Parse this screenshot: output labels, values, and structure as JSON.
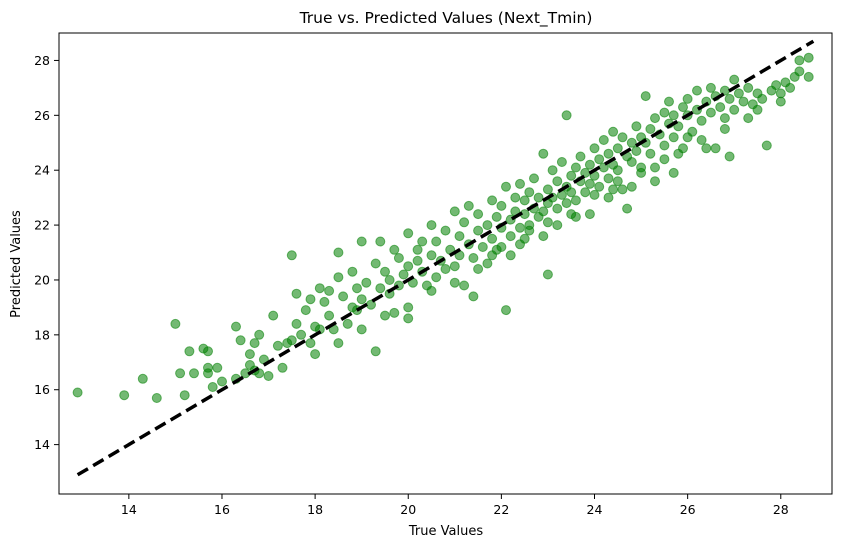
{
  "chart_data": {
    "type": "scatter",
    "title": "True vs. Predicted Values (Next_Tmin)",
    "xlabel": "True Values",
    "ylabel": "Predicted Values",
    "xlim": [
      12.5,
      29.1
    ],
    "ylim": [
      12.2,
      29.0
    ],
    "xticks": [
      14,
      16,
      18,
      20,
      22,
      24,
      26,
      28
    ],
    "yticks": [
      14,
      16,
      18,
      20,
      22,
      24,
      26,
      28
    ],
    "grid": false,
    "legend": "none",
    "point_color": "#008000",
    "point_alpha": 0.55,
    "reference_line": {
      "x": [
        12.9,
        28.7
      ],
      "y": [
        12.9,
        28.7
      ],
      "style": "dashed",
      "color": "#000000"
    },
    "points": [
      [
        12.9,
        15.9
      ],
      [
        13.9,
        15.8
      ],
      [
        14.3,
        16.4
      ],
      [
        14.6,
        15.7
      ],
      [
        15.0,
        18.4
      ],
      [
        15.1,
        16.6
      ],
      [
        15.2,
        15.8
      ],
      [
        15.3,
        17.4
      ],
      [
        15.4,
        16.6
      ],
      [
        15.6,
        17.5
      ],
      [
        15.7,
        17.4
      ],
      [
        15.7,
        16.8
      ],
      [
        15.7,
        16.6
      ],
      [
        15.8,
        16.1
      ],
      [
        15.9,
        16.8
      ],
      [
        16.0,
        16.3
      ],
      [
        16.3,
        18.3
      ],
      [
        16.3,
        16.4
      ],
      [
        16.4,
        17.8
      ],
      [
        16.5,
        16.6
      ],
      [
        16.6,
        17.3
      ],
      [
        16.6,
        16.9
      ],
      [
        16.7,
        17.7
      ],
      [
        16.7,
        16.7
      ],
      [
        16.8,
        16.6
      ],
      [
        16.8,
        18.0
      ],
      [
        16.9,
        17.1
      ],
      [
        17.0,
        16.5
      ],
      [
        17.1,
        18.7
      ],
      [
        17.2,
        17.6
      ],
      [
        17.3,
        16.8
      ],
      [
        17.4,
        17.7
      ],
      [
        17.5,
        20.9
      ],
      [
        17.5,
        17.8
      ],
      [
        17.6,
        18.4
      ],
      [
        17.6,
        19.5
      ],
      [
        17.7,
        18.0
      ],
      [
        17.8,
        18.9
      ],
      [
        17.9,
        17.7
      ],
      [
        17.9,
        19.3
      ],
      [
        18.0,
        18.3
      ],
      [
        18.1,
        18.2
      ],
      [
        18.1,
        19.7
      ],
      [
        18.2,
        19.2
      ],
      [
        18.3,
        19.6
      ],
      [
        18.3,
        18.7
      ],
      [
        18.4,
        18.2
      ],
      [
        18.5,
        20.1
      ],
      [
        18.5,
        21.0
      ],
      [
        18.6,
        19.4
      ],
      [
        18.7,
        18.4
      ],
      [
        18.8,
        19.0
      ],
      [
        18.8,
        20.3
      ],
      [
        18.9,
        18.9
      ],
      [
        18.9,
        19.7
      ],
      [
        19.0,
        21.4
      ],
      [
        19.0,
        19.3
      ],
      [
        19.1,
        19.9
      ],
      [
        19.2,
        19.1
      ],
      [
        19.3,
        17.4
      ],
      [
        19.3,
        20.6
      ],
      [
        19.4,
        21.4
      ],
      [
        19.4,
        19.7
      ],
      [
        19.5,
        20.3
      ],
      [
        19.6,
        20.0
      ],
      [
        19.6,
        19.5
      ],
      [
        19.7,
        21.1
      ],
      [
        19.7,
        18.8
      ],
      [
        19.8,
        20.8
      ],
      [
        19.8,
        19.8
      ],
      [
        19.9,
        20.2
      ],
      [
        20.0,
        21.7
      ],
      [
        20.0,
        18.6
      ],
      [
        20.0,
        20.5
      ],
      [
        20.1,
        19.9
      ],
      [
        20.2,
        21.1
      ],
      [
        20.2,
        20.7
      ],
      [
        20.3,
        20.3
      ],
      [
        20.3,
        21.4
      ],
      [
        20.4,
        19.8
      ],
      [
        20.5,
        22.0
      ],
      [
        20.5,
        20.9
      ],
      [
        20.6,
        21.4
      ],
      [
        20.6,
        20.1
      ],
      [
        20.7,
        20.7
      ],
      [
        20.8,
        21.8
      ],
      [
        20.8,
        20.4
      ],
      [
        20.9,
        21.1
      ],
      [
        21.0,
        22.5
      ],
      [
        21.0,
        20.5
      ],
      [
        21.1,
        21.6
      ],
      [
        21.1,
        20.9
      ],
      [
        21.2,
        22.1
      ],
      [
        21.2,
        19.8
      ],
      [
        21.3,
        21.3
      ],
      [
        21.3,
        22.7
      ],
      [
        21.4,
        20.8
      ],
      [
        21.5,
        21.8
      ],
      [
        21.5,
        22.4
      ],
      [
        21.6,
        21.2
      ],
      [
        21.7,
        22.0
      ],
      [
        21.7,
        20.6
      ],
      [
        21.8,
        22.9
      ],
      [
        21.8,
        21.5
      ],
      [
        21.9,
        22.3
      ],
      [
        21.9,
        21.1
      ],
      [
        22.0,
        22.7
      ],
      [
        22.0,
        21.9
      ],
      [
        22.1,
        23.4
      ],
      [
        22.1,
        18.9
      ],
      [
        22.2,
        22.2
      ],
      [
        22.2,
        21.6
      ],
      [
        22.3,
        23.0
      ],
      [
        22.3,
        22.5
      ],
      [
        22.4,
        21.9
      ],
      [
        22.4,
        23.5
      ],
      [
        22.5,
        22.4
      ],
      [
        22.5,
        22.9
      ],
      [
        22.6,
        23.2
      ],
      [
        22.6,
        21.8
      ],
      [
        22.7,
        22.6
      ],
      [
        22.7,
        23.7
      ],
      [
        22.8,
        22.3
      ],
      [
        22.8,
        23.0
      ],
      [
        22.9,
        24.6
      ],
      [
        22.9,
        22.5
      ],
      [
        23.0,
        23.3
      ],
      [
        23.0,
        20.2
      ],
      [
        23.0,
        22.8
      ],
      [
        23.1,
        24.0
      ],
      [
        23.1,
        23.0
      ],
      [
        23.2,
        22.6
      ],
      [
        23.2,
        23.6
      ],
      [
        23.3,
        23.1
      ],
      [
        23.3,
        24.3
      ],
      [
        23.4,
        23.4
      ],
      [
        23.4,
        22.8
      ],
      [
        23.4,
        26.0
      ],
      [
        23.5,
        23.8
      ],
      [
        23.5,
        23.2
      ],
      [
        23.6,
        24.1
      ],
      [
        23.6,
        22.9
      ],
      [
        23.7,
        23.6
      ],
      [
        23.7,
        24.5
      ],
      [
        23.8,
        23.2
      ],
      [
        23.8,
        23.9
      ],
      [
        23.9,
        24.2
      ],
      [
        23.9,
        23.5
      ],
      [
        24.0,
        24.8
      ],
      [
        24.0,
        23.8
      ],
      [
        24.1,
        23.4
      ],
      [
        24.1,
        24.4
      ],
      [
        24.2,
        24.1
      ],
      [
        24.2,
        25.1
      ],
      [
        24.3,
        23.7
      ],
      [
        24.3,
        24.6
      ],
      [
        24.4,
        24.2
      ],
      [
        24.4,
        25.4
      ],
      [
        24.5,
        24.0
      ],
      [
        24.5,
        24.8
      ],
      [
        24.6,
        23.3
      ],
      [
        24.6,
        25.2
      ],
      [
        24.7,
        24.5
      ],
      [
        24.7,
        22.6
      ],
      [
        24.8,
        25.0
      ],
      [
        24.8,
        24.3
      ],
      [
        24.9,
        25.6
      ],
      [
        24.9,
        24.7
      ],
      [
        25.0,
        25.2
      ],
      [
        25.0,
        24.1
      ],
      [
        25.1,
        26.7
      ],
      [
        25.1,
        25.0
      ],
      [
        25.2,
        25.5
      ],
      [
        25.2,
        24.6
      ],
      [
        25.3,
        25.9
      ],
      [
        25.3,
        23.6
      ],
      [
        25.4,
        25.3
      ],
      [
        25.5,
        26.1
      ],
      [
        25.5,
        24.9
      ],
      [
        25.6,
        25.7
      ],
      [
        25.6,
        26.5
      ],
      [
        25.7,
        25.2
      ],
      [
        25.7,
        26.0
      ],
      [
        25.8,
        25.6
      ],
      [
        25.9,
        26.3
      ],
      [
        25.9,
        24.8
      ],
      [
        26.0,
        26.0
      ],
      [
        26.0,
        26.6
      ],
      [
        26.1,
        25.4
      ],
      [
        26.2,
        26.2
      ],
      [
        26.2,
        26.9
      ],
      [
        26.3,
        25.8
      ],
      [
        26.4,
        26.5
      ],
      [
        26.4,
        24.8
      ],
      [
        26.5,
        26.1
      ],
      [
        26.5,
        27.0
      ],
      [
        26.6,
        26.7
      ],
      [
        26.7,
        26.3
      ],
      [
        26.8,
        26.9
      ],
      [
        26.8,
        25.9
      ],
      [
        26.9,
        24.5
      ],
      [
        26.9,
        26.6
      ],
      [
        27.0,
        27.3
      ],
      [
        27.0,
        26.2
      ],
      [
        27.1,
        26.8
      ],
      [
        27.2,
        26.5
      ],
      [
        27.3,
        27.0
      ],
      [
        27.4,
        26.4
      ],
      [
        27.5,
        26.8
      ],
      [
        27.6,
        26.6
      ],
      [
        27.7,
        24.9
      ],
      [
        27.8,
        26.9
      ],
      [
        27.9,
        27.1
      ],
      [
        28.0,
        26.8
      ],
      [
        28.1,
        27.2
      ],
      [
        28.2,
        27.0
      ],
      [
        28.3,
        27.4
      ],
      [
        28.4,
        27.6
      ],
      [
        28.4,
        28.0
      ],
      [
        28.6,
        27.4
      ],
      [
        28.6,
        28.1
      ],
      [
        28.0,
        26.5
      ],
      [
        27.5,
        26.2
      ],
      [
        26.0,
        25.2
      ],
      [
        25.5,
        24.4
      ],
      [
        25.0,
        23.9
      ],
      [
        24.5,
        23.6
      ],
      [
        24.0,
        23.1
      ],
      [
        23.5,
        22.4
      ],
      [
        23.0,
        22.1
      ],
      [
        22.5,
        21.5
      ],
      [
        22.0,
        21.2
      ],
      [
        21.5,
        20.4
      ],
      [
        21.0,
        19.9
      ],
      [
        20.5,
        19.6
      ],
      [
        20.0,
        19.0
      ],
      [
        19.5,
        18.7
      ],
      [
        19.0,
        18.2
      ],
      [
        18.5,
        17.7
      ],
      [
        18.0,
        17.3
      ],
      [
        21.4,
        19.4
      ],
      [
        21.8,
        20.9
      ],
      [
        22.2,
        20.9
      ],
      [
        22.6,
        22.0
      ],
      [
        23.9,
        22.4
      ],
      [
        24.3,
        23.0
      ],
      [
        24.8,
        23.4
      ],
      [
        25.3,
        24.1
      ],
      [
        25.8,
        24.6
      ],
      [
        26.3,
        25.1
      ],
      [
        26.8,
        25.5
      ],
      [
        27.3,
        25.9
      ],
      [
        23.2,
        22.0
      ],
      [
        23.6,
        22.3
      ],
      [
        22.9,
        21.6
      ],
      [
        22.4,
        21.3
      ],
      [
        24.4,
        23.3
      ],
      [
        25.7,
        23.9
      ],
      [
        26.6,
        24.8
      ]
    ]
  }
}
